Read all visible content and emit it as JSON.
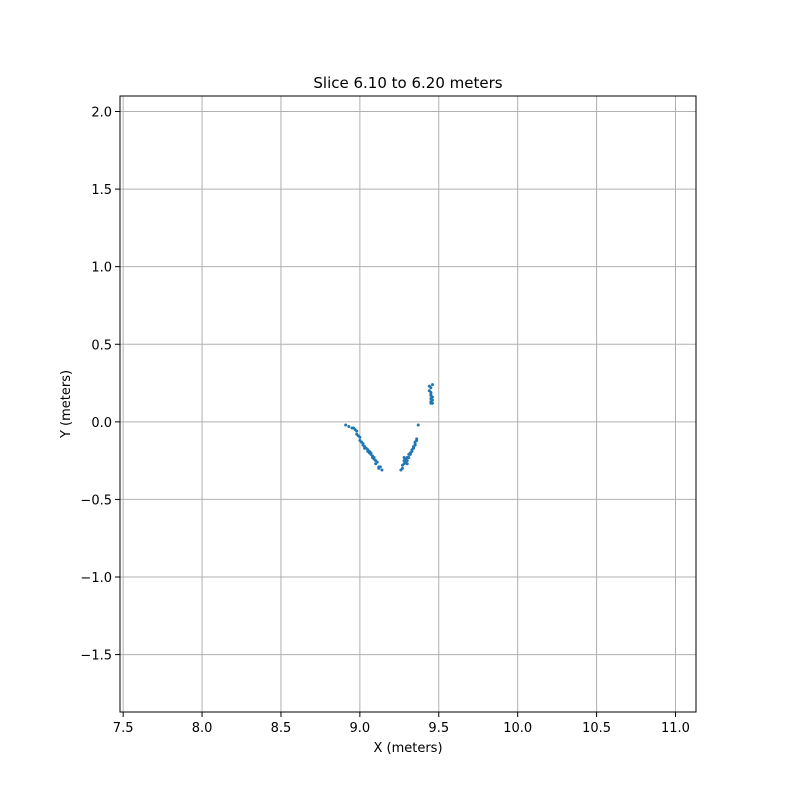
{
  "chart_data": {
    "type": "scatter",
    "title": "Slice 6.10 to 6.20 meters",
    "xlabel": "X (meters)",
    "ylabel": "Y (meters)",
    "xlim": [
      7.48,
      11.13
    ],
    "ylim": [
      -1.87,
      2.1
    ],
    "xticks": [
      7.5,
      8.0,
      8.5,
      9.0,
      9.5,
      10.0,
      10.5,
      11.0
    ],
    "xtick_labels": [
      "7.5",
      "8.0",
      "8.5",
      "9.0",
      "9.5",
      "10.0",
      "10.5",
      "11.0"
    ],
    "yticks": [
      -1.5,
      -1.0,
      -0.5,
      0.0,
      0.5,
      1.0,
      1.5,
      2.0
    ],
    "ytick_labels": [
      "−1.5",
      "−1.0",
      "−0.5",
      "0.0",
      "0.5",
      "1.0",
      "1.5",
      "2.0"
    ],
    "grid": true,
    "marker_color": "#1f77b4",
    "grid_color": "#b0b0b0",
    "series": [
      {
        "points": [
          [
            8.91,
            -0.02
          ],
          [
            8.93,
            -0.03
          ],
          [
            8.95,
            -0.04
          ],
          [
            8.96,
            -0.04
          ],
          [
            8.97,
            -0.05
          ],
          [
            8.98,
            -0.06
          ],
          [
            8.98,
            -0.08
          ],
          [
            8.99,
            -0.09
          ],
          [
            9.0,
            -0.1
          ],
          [
            9.0,
            -0.12
          ],
          [
            9.01,
            -0.13
          ],
          [
            9.02,
            -0.14
          ],
          [
            9.02,
            -0.15
          ],
          [
            9.03,
            -0.16
          ],
          [
            9.03,
            -0.17
          ],
          [
            9.04,
            -0.17
          ],
          [
            9.05,
            -0.18
          ],
          [
            9.05,
            -0.19
          ],
          [
            9.06,
            -0.19
          ],
          [
            9.06,
            -0.2
          ],
          [
            9.07,
            -0.2
          ],
          [
            9.07,
            -0.21
          ],
          [
            9.08,
            -0.22
          ],
          [
            9.08,
            -0.23
          ],
          [
            9.09,
            -0.23
          ],
          [
            9.09,
            -0.24
          ],
          [
            9.1,
            -0.25
          ],
          [
            9.1,
            -0.27
          ],
          [
            9.11,
            -0.26
          ],
          [
            9.12,
            -0.29
          ],
          [
            9.12,
            -0.3
          ],
          [
            9.14,
            -0.31
          ],
          [
            9.13,
            -0.29
          ],
          [
            9.26,
            -0.31
          ],
          [
            9.27,
            -0.3
          ],
          [
            9.27,
            -0.28
          ],
          [
            9.28,
            -0.27
          ],
          [
            9.28,
            -0.25
          ],
          [
            9.29,
            -0.26
          ],
          [
            9.29,
            -0.24
          ],
          [
            9.3,
            -0.25
          ],
          [
            9.3,
            -0.23
          ],
          [
            9.31,
            -0.23
          ],
          [
            9.31,
            -0.21
          ],
          [
            9.32,
            -0.21
          ],
          [
            9.32,
            -0.2
          ],
          [
            9.33,
            -0.19
          ],
          [
            9.33,
            -0.18
          ],
          [
            9.34,
            -0.17
          ],
          [
            9.34,
            -0.16
          ],
          [
            9.35,
            -0.15
          ],
          [
            9.35,
            -0.14
          ],
          [
            9.35,
            -0.13
          ],
          [
            9.36,
            -0.12
          ],
          [
            9.36,
            -0.11
          ],
          [
            9.37,
            -0.02
          ],
          [
            9.28,
            -0.23
          ],
          [
            9.3,
            -0.27
          ],
          [
            9.44,
            0.23
          ],
          [
            9.45,
            0.22
          ],
          [
            9.44,
            0.2
          ],
          [
            9.45,
            0.19
          ],
          [
            9.45,
            0.18
          ],
          [
            9.45,
            0.17
          ],
          [
            9.46,
            0.16
          ],
          [
            9.45,
            0.15
          ],
          [
            9.46,
            0.14
          ],
          [
            9.45,
            0.13
          ],
          [
            9.45,
            0.12
          ],
          [
            9.46,
            0.12
          ],
          [
            9.46,
            0.24
          ]
        ]
      }
    ]
  }
}
